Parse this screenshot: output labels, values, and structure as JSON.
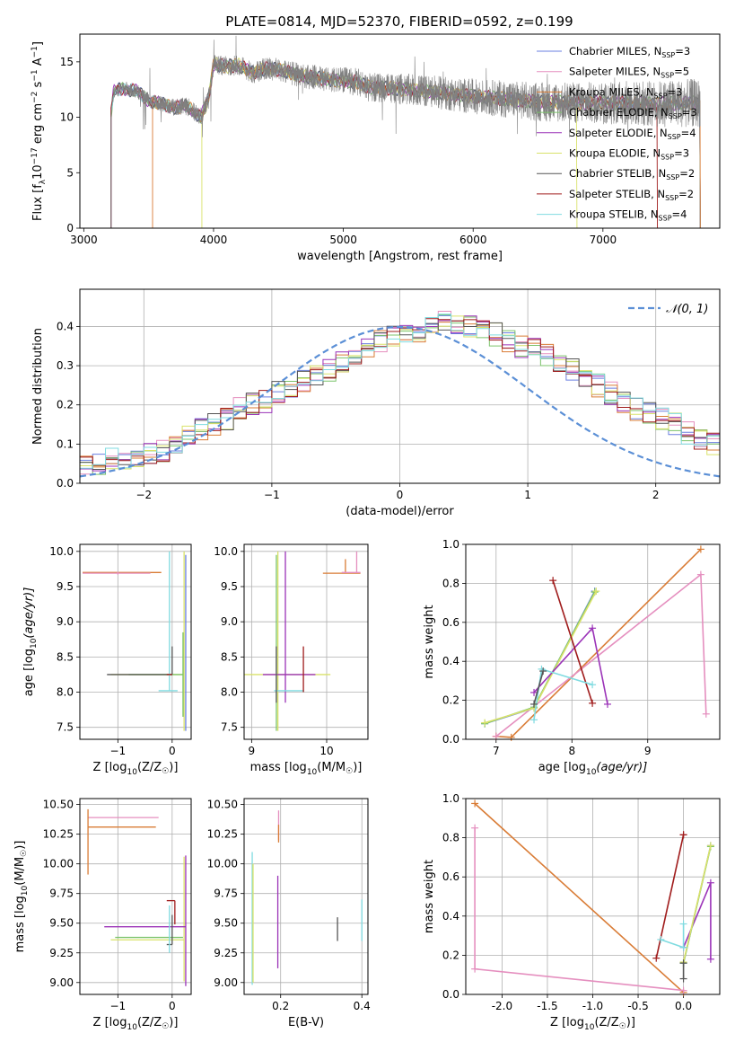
{
  "figure": {
    "title": "PLATE=0814, MJD=52370, FIBERID=0592, z=0.199"
  },
  "legend_models": [
    {
      "label": "Chabrier MILES, N",
      "sub": "SSP",
      "suffix": "=3",
      "color": "#6a7fe0"
    },
    {
      "label": "Salpeter MILES, N",
      "sub": "SSP",
      "suffix": "=5",
      "color": "#e58fbf"
    },
    {
      "label": "Kroupa MILES, N",
      "sub": "SSP",
      "suffix": "=3",
      "color": "#d97c36"
    },
    {
      "label": "Chabrier ELODIE, N",
      "sub": "SSP",
      "suffix": "=3",
      "color": "#7cc36b"
    },
    {
      "label": "Salpeter ELODIE, N",
      "sub": "SSP",
      "suffix": "=4",
      "color": "#9b33b8"
    },
    {
      "label": "Kroupa ELODIE, N",
      "sub": "SSP",
      "suffix": "=3",
      "color": "#d9e26a"
    },
    {
      "label": "Chabrier STELIB, N",
      "sub": "SSP",
      "suffix": "=2",
      "color": "#555555"
    },
    {
      "label": "Salpeter STELIB, N",
      "sub": "SSP",
      "suffix": "=2",
      "color": "#a01c1c"
    },
    {
      "label": "Kroupa STELIB, N",
      "sub": "SSP",
      "suffix": "=4",
      "color": "#7fdbe0"
    }
  ],
  "chart_data": [
    {
      "id": "spectrum",
      "type": "line",
      "xlabel": "wavelength [Angstrom, rest frame]",
      "ylabel": "Flux [f_λ 10^-17 erg cm^-2 s^-1 A^-1]",
      "xlim": [
        2970,
        7900
      ],
      "ylim": [
        0,
        17.5
      ],
      "x_ticks": [
        3000,
        4000,
        5000,
        6000,
        7000
      ],
      "y_ticks": [
        0,
        5,
        10,
        15
      ],
      "data_color": "#808080",
      "data_x_range": [
        3210,
        7750
      ],
      "continuum": [
        [
          3210,
          10.3
        ],
        [
          3230,
          12.3
        ],
        [
          3300,
          12.6
        ],
        [
          3400,
          12.4
        ],
        [
          3500,
          11.5
        ],
        [
          3600,
          11.2
        ],
        [
          3700,
          10.9
        ],
        [
          3800,
          11.0
        ],
        [
          3900,
          10.0
        ],
        [
          3960,
          11.6
        ],
        [
          4000,
          14.8
        ],
        [
          4100,
          14.6
        ],
        [
          4200,
          14.7
        ],
        [
          4300,
          14.0
        ],
        [
          4400,
          14.4
        ],
        [
          4500,
          14.3
        ],
        [
          4700,
          13.7
        ],
        [
          4900,
          13.4
        ],
        [
          5100,
          13.2
        ],
        [
          5200,
          12.7
        ],
        [
          5400,
          12.6
        ],
        [
          5600,
          12.4
        ],
        [
          5900,
          12.0
        ],
        [
          6200,
          11.7
        ],
        [
          6500,
          11.4
        ],
        [
          6800,
          11.3
        ],
        [
          7100,
          11.3
        ],
        [
          7400,
          11.2
        ],
        [
          7750,
          11.3
        ]
      ],
      "model_start_offsets": [
        3210,
        3210,
        3530,
        3210,
        3210,
        3910,
        3210,
        3210,
        3210
      ],
      "model_end_offsets": [
        7750,
        7750,
        7750,
        7750,
        7750,
        6800,
        7750,
        7420,
        7750
      ]
    },
    {
      "id": "residual-hist",
      "type": "histogram",
      "xlabel": "(data-model)/error",
      "ylabel": "Normed distribution",
      "xlim": [
        -2.5,
        2.5
      ],
      "ylim": [
        0,
        0.495
      ],
      "x_ticks": [
        -2,
        -1,
        0,
        1,
        2
      ],
      "y_ticks": [
        0.0,
        0.1,
        0.2,
        0.3,
        0.4
      ],
      "bin_width": 0.1,
      "bin_start": -2.5,
      "base_profile": [
        0.04,
        0.045,
        0.065,
        0.06,
        0.07,
        0.08,
        0.085,
        0.1,
        0.12,
        0.135,
        0.15,
        0.165,
        0.19,
        0.2,
        0.21,
        0.23,
        0.25,
        0.26,
        0.28,
        0.29,
        0.31,
        0.33,
        0.34,
        0.36,
        0.375,
        0.38,
        0.39,
        0.4,
        0.41,
        0.4,
        0.4,
        0.39,
        0.38,
        0.365,
        0.35,
        0.34,
        0.33,
        0.31,
        0.29,
        0.27,
        0.25,
        0.23,
        0.21,
        0.19,
        0.18,
        0.165,
        0.15,
        0.13,
        0.115,
        0.1,
        0.09
      ],
      "reference": {
        "label": "𝒩(0, 1)",
        "mean": 0,
        "sigma": 1,
        "color": "#5b8fd6"
      }
    },
    {
      "id": "age-vs-Z",
      "type": "errorbar",
      "xlabel": "Z [log10(Z/Z☉)]",
      "ylabel": "age  [log10(age/yr)]",
      "xlim": [
        -1.7,
        0.35
      ],
      "ylim": [
        7.33,
        10.1
      ],
      "x_ticks": [
        -1,
        0
      ],
      "y_ticks": [
        7.5,
        8.0,
        8.5,
        9.0,
        9.5,
        10.0
      ],
      "points": [
        {
          "x": -0.95,
          "y": 9.7,
          "xerr": [
            0.7,
            0.75
          ],
          "yerr": [
            0,
            0
          ],
          "model": 2
        },
        {
          "x": -1.0,
          "y": 9.69,
          "xerr": [
            0.65,
            0.6
          ],
          "yerr": [
            0.02,
            0.02
          ],
          "model": 1
        },
        {
          "x": 0.22,
          "y": 8.25,
          "xerr": [
            1.35,
            0
          ],
          "yerr": [
            0.8,
            1.75
          ],
          "model": 5
        },
        {
          "x": 0.2,
          "y": 8.25,
          "xerr": [
            1.0,
            0
          ],
          "yerr": [
            0.6,
            0.6
          ],
          "model": 3
        },
        {
          "x": 0.0,
          "y": 8.25,
          "xerr": [
            1.2,
            0.0
          ],
          "yerr": [
            0,
            0.4
          ],
          "model": 6
        },
        {
          "x": -0.05,
          "y": 8.02,
          "xerr": [
            0.2,
            0.15
          ],
          "yerr": [
            0,
            1.98
          ],
          "model": 8
        },
        {
          "x": -0.1,
          "y": 8.25,
          "xerr": [
            0,
            0.1
          ],
          "yerr": [
            0,
            0
          ],
          "model": 7
        },
        {
          "x": 0.25,
          "y": 8.25,
          "xerr": [
            0,
            0
          ],
          "yerr": [
            0.8,
            1.7
          ],
          "model": 0
        }
      ]
    },
    {
      "id": "age-vs-mass",
      "type": "errorbar",
      "xlabel": "mass [log10(M/M☉)]",
      "ylabel": "",
      "xlim": [
        8.9,
        10.55
      ],
      "ylim": [
        7.33,
        10.1
      ],
      "x_ticks": [
        9,
        10
      ],
      "y_ticks": [
        7.5,
        8.0,
        8.5,
        9.0,
        9.5,
        10.0
      ],
      "points": [
        {
          "x": 10.25,
          "y": 9.69,
          "xerr": [
            0.3,
            0.2
          ],
          "yerr": [
            0,
            0.2
          ],
          "model": 2
        },
        {
          "x": 10.4,
          "y": 9.7,
          "xerr": [
            0.2,
            0.05
          ],
          "yerr": [
            0,
            0.3
          ],
          "model": 1
        },
        {
          "x": 9.35,
          "y": 8.25,
          "xerr": [
            0.45,
            0.7
          ],
          "yerr": [
            0.8,
            1.75
          ],
          "model": 5
        },
        {
          "x": 9.45,
          "y": 8.25,
          "xerr": [
            0.3,
            0.4
          ],
          "yerr": [
            0.4,
            1.75
          ],
          "model": 4
        },
        {
          "x": 9.33,
          "y": 8.25,
          "xerr": [
            0,
            0
          ],
          "yerr": [
            0.8,
            1.7
          ],
          "model": 3
        },
        {
          "x": 9.5,
          "y": 8.02,
          "xerr": [
            0.2,
            0.2
          ],
          "yerr": [
            0,
            0
          ],
          "model": 8
        },
        {
          "x": 9.69,
          "y": 8.25,
          "xerr": [
            0,
            0
          ],
          "yerr": [
            0.25,
            0.4
          ],
          "model": 7
        },
        {
          "x": 9.33,
          "y": 8.25,
          "xerr": [
            0,
            0
          ],
          "yerr": [
            0.4,
            0.4
          ],
          "model": 6
        }
      ]
    },
    {
      "id": "mass-weight-vs-age",
      "type": "line",
      "xlabel": "age  [log10(age/yr)]",
      "ylabel": "mass weight",
      "xlim": [
        6.6,
        9.95
      ],
      "ylim": [
        0,
        1.0
      ],
      "x_ticks": [
        7,
        8,
        9
      ],
      "y_ticks": [
        0.0,
        0.2,
        0.4,
        0.6,
        0.8,
        1.0
      ],
      "series": [
        {
          "model": 2,
          "x": [
            7.0,
            7.2,
            9.7
          ],
          "y": [
            0.015,
            0.01,
            0.975
          ]
        },
        {
          "model": 1,
          "x": [
            7.0,
            9.7,
            9.77
          ],
          "y": [
            0.015,
            0.845,
            0.13
          ]
        },
        {
          "model": 0,
          "x": [
            6.85,
            7.5,
            8.3
          ],
          "y": [
            0.08,
            0.16,
            0.76
          ]
        },
        {
          "model": 3,
          "x": [
            6.85,
            7.5,
            8.3
          ],
          "y": [
            0.08,
            0.165,
            0.755
          ]
        },
        {
          "model": 5,
          "x": [
            6.85,
            7.5,
            8.32
          ],
          "y": [
            0.085,
            0.16,
            0.76
          ]
        },
        {
          "model": 4,
          "x": [
            7.5,
            8.27,
            8.47
          ],
          "y": [
            0.24,
            0.57,
            0.18
          ]
        },
        {
          "model": 7,
          "x": [
            7.75,
            8.27
          ],
          "y": [
            0.815,
            0.185
          ]
        },
        {
          "model": 8,
          "x": [
            7.5,
            7.6,
            8.27
          ],
          "y": [
            0.1,
            0.36,
            0.28
          ]
        },
        {
          "model": 6,
          "x": [
            7.5,
            7.62
          ],
          "y": [
            0.18,
            0.35
          ]
        }
      ]
    },
    {
      "id": "mass-vs-Z",
      "type": "errorbar",
      "xlabel": "Z [log10(Z/Z☉)]",
      "ylabel": "mass [log10(M/M☉)]",
      "xlim": [
        -1.7,
        0.35
      ],
      "ylim": [
        8.9,
        10.55
      ],
      "x_ticks": [
        -1,
        0
      ],
      "y_ticks": [
        9.0,
        9.25,
        9.5,
        9.75,
        10.0,
        10.25,
        10.5
      ],
      "points": [
        {
          "x": -1.55,
          "y": 10.39,
          "xerr": [
            0,
            1.3
          ],
          "yerr": [
            0,
            0
          ],
          "model": 1
        },
        {
          "x": -1.55,
          "y": 10.31,
          "xerr": [
            0,
            1.25
          ],
          "yerr": [
            0.4,
            0.15
          ],
          "model": 2
        },
        {
          "x": 0.22,
          "y": 9.36,
          "xerr": [
            1.35,
            0
          ],
          "yerr": [
            0.35,
            0.7
          ],
          "model": 5
        },
        {
          "x": 0.1,
          "y": 9.38,
          "xerr": [
            1.15,
            0.1
          ],
          "yerr": [
            0,
            0
          ],
          "model": 3
        },
        {
          "x": 0.25,
          "y": 9.47,
          "xerr": [
            1.5,
            0
          ],
          "yerr": [
            0.5,
            0.6
          ],
          "model": 4
        },
        {
          "x": 0.0,
          "y": 9.32,
          "xerr": [
            0.1,
            0
          ],
          "yerr": [
            0,
            0.25
          ],
          "model": 6
        },
        {
          "x": -0.05,
          "y": 9.55,
          "xerr": [
            0,
            0
          ],
          "yerr": [
            0.3,
            0.1
          ],
          "model": 8
        },
        {
          "x": 0.05,
          "y": 9.69,
          "xerr": [
            0.15,
            0
          ],
          "yerr": [
            0.2,
            0
          ],
          "model": 7
        }
      ]
    },
    {
      "id": "mass-vs-EBV",
      "type": "errorbar",
      "xlabel": "E(B-V)",
      "ylabel": "",
      "xlim": [
        0.11,
        0.415
      ],
      "ylim": [
        8.9,
        10.55
      ],
      "x_ticks": [
        0.2,
        0.4
      ],
      "y_ticks": [
        9.0,
        9.25,
        9.5,
        9.75,
        10.0,
        10.25,
        10.5
      ],
      "points": [
        {
          "x": 0.13,
          "y": 9.55,
          "xerr": [
            0,
            0
          ],
          "yerr": [
            0.57,
            0.55
          ],
          "model": 8
        },
        {
          "x": 0.132,
          "y": 9.5,
          "xerr": [
            0,
            0
          ],
          "yerr": [
            0.5,
            0.5
          ],
          "model": 5
        },
        {
          "x": 0.195,
          "y": 10.2,
          "xerr": [
            0,
            0
          ],
          "yerr": [
            0,
            0.25
          ],
          "model": 1
        },
        {
          "x": 0.195,
          "y": 10.18,
          "xerr": [
            0,
            0
          ],
          "yerr": [
            0,
            0.15
          ],
          "model": 2
        },
        {
          "x": 0.193,
          "y": 9.5,
          "xerr": [
            0,
            0
          ],
          "yerr": [
            0.38,
            0.4
          ],
          "model": 4
        },
        {
          "x": 0.34,
          "y": 9.45,
          "xerr": [
            0,
            0
          ],
          "yerr": [
            0.1,
            0.1
          ],
          "model": 6
        },
        {
          "x": 0.4,
          "y": 9.5,
          "xerr": [
            0,
            0
          ],
          "yerr": [
            0.15,
            0.2
          ],
          "model": 8
        }
      ]
    },
    {
      "id": "mass-weight-vs-Z",
      "type": "line",
      "xlabel": "Z [log10(Z/Z☉)]",
      "ylabel": "mass weight",
      "xlim": [
        -2.4,
        0.4
      ],
      "ylim": [
        0,
        1.0
      ],
      "x_ticks": [
        -2.0,
        -1.5,
        -1.0,
        -0.5,
        0.0
      ],
      "y_ticks": [
        0.0,
        0.2,
        0.4,
        0.6,
        0.8,
        1.0
      ],
      "series": [
        {
          "model": 2,
          "x": [
            -2.3,
            0.0
          ],
          "y": [
            0.975,
            0.01
          ]
        },
        {
          "model": 1,
          "x": [
            -2.3,
            -2.3,
            0.0
          ],
          "y": [
            0.85,
            0.13,
            0.02
          ]
        },
        {
          "model": 7,
          "x": [
            -0.3,
            0.0,
            0.0
          ],
          "y": [
            0.185,
            0.815,
            0.815
          ]
        },
        {
          "model": 4,
          "x": [
            0.0,
            0.3,
            0.3
          ],
          "y": [
            0.24,
            0.57,
            0.18
          ]
        },
        {
          "model": 0,
          "x": [
            0.0,
            0.3
          ],
          "y": [
            0.16,
            0.76
          ]
        },
        {
          "model": 3,
          "x": [
            0.0,
            0.3
          ],
          "y": [
            0.16,
            0.755
          ]
        },
        {
          "model": 5,
          "x": [
            0.0,
            0.3
          ],
          "y": [
            0.165,
            0.76
          ]
        },
        {
          "model": 8,
          "x": [
            -0.25,
            0.0,
            0.0
          ],
          "y": [
            0.28,
            0.24,
            0.36
          ]
        },
        {
          "model": 6,
          "x": [
            0.0,
            0.0
          ],
          "y": [
            0.08,
            0.16
          ]
        }
      ]
    }
  ]
}
